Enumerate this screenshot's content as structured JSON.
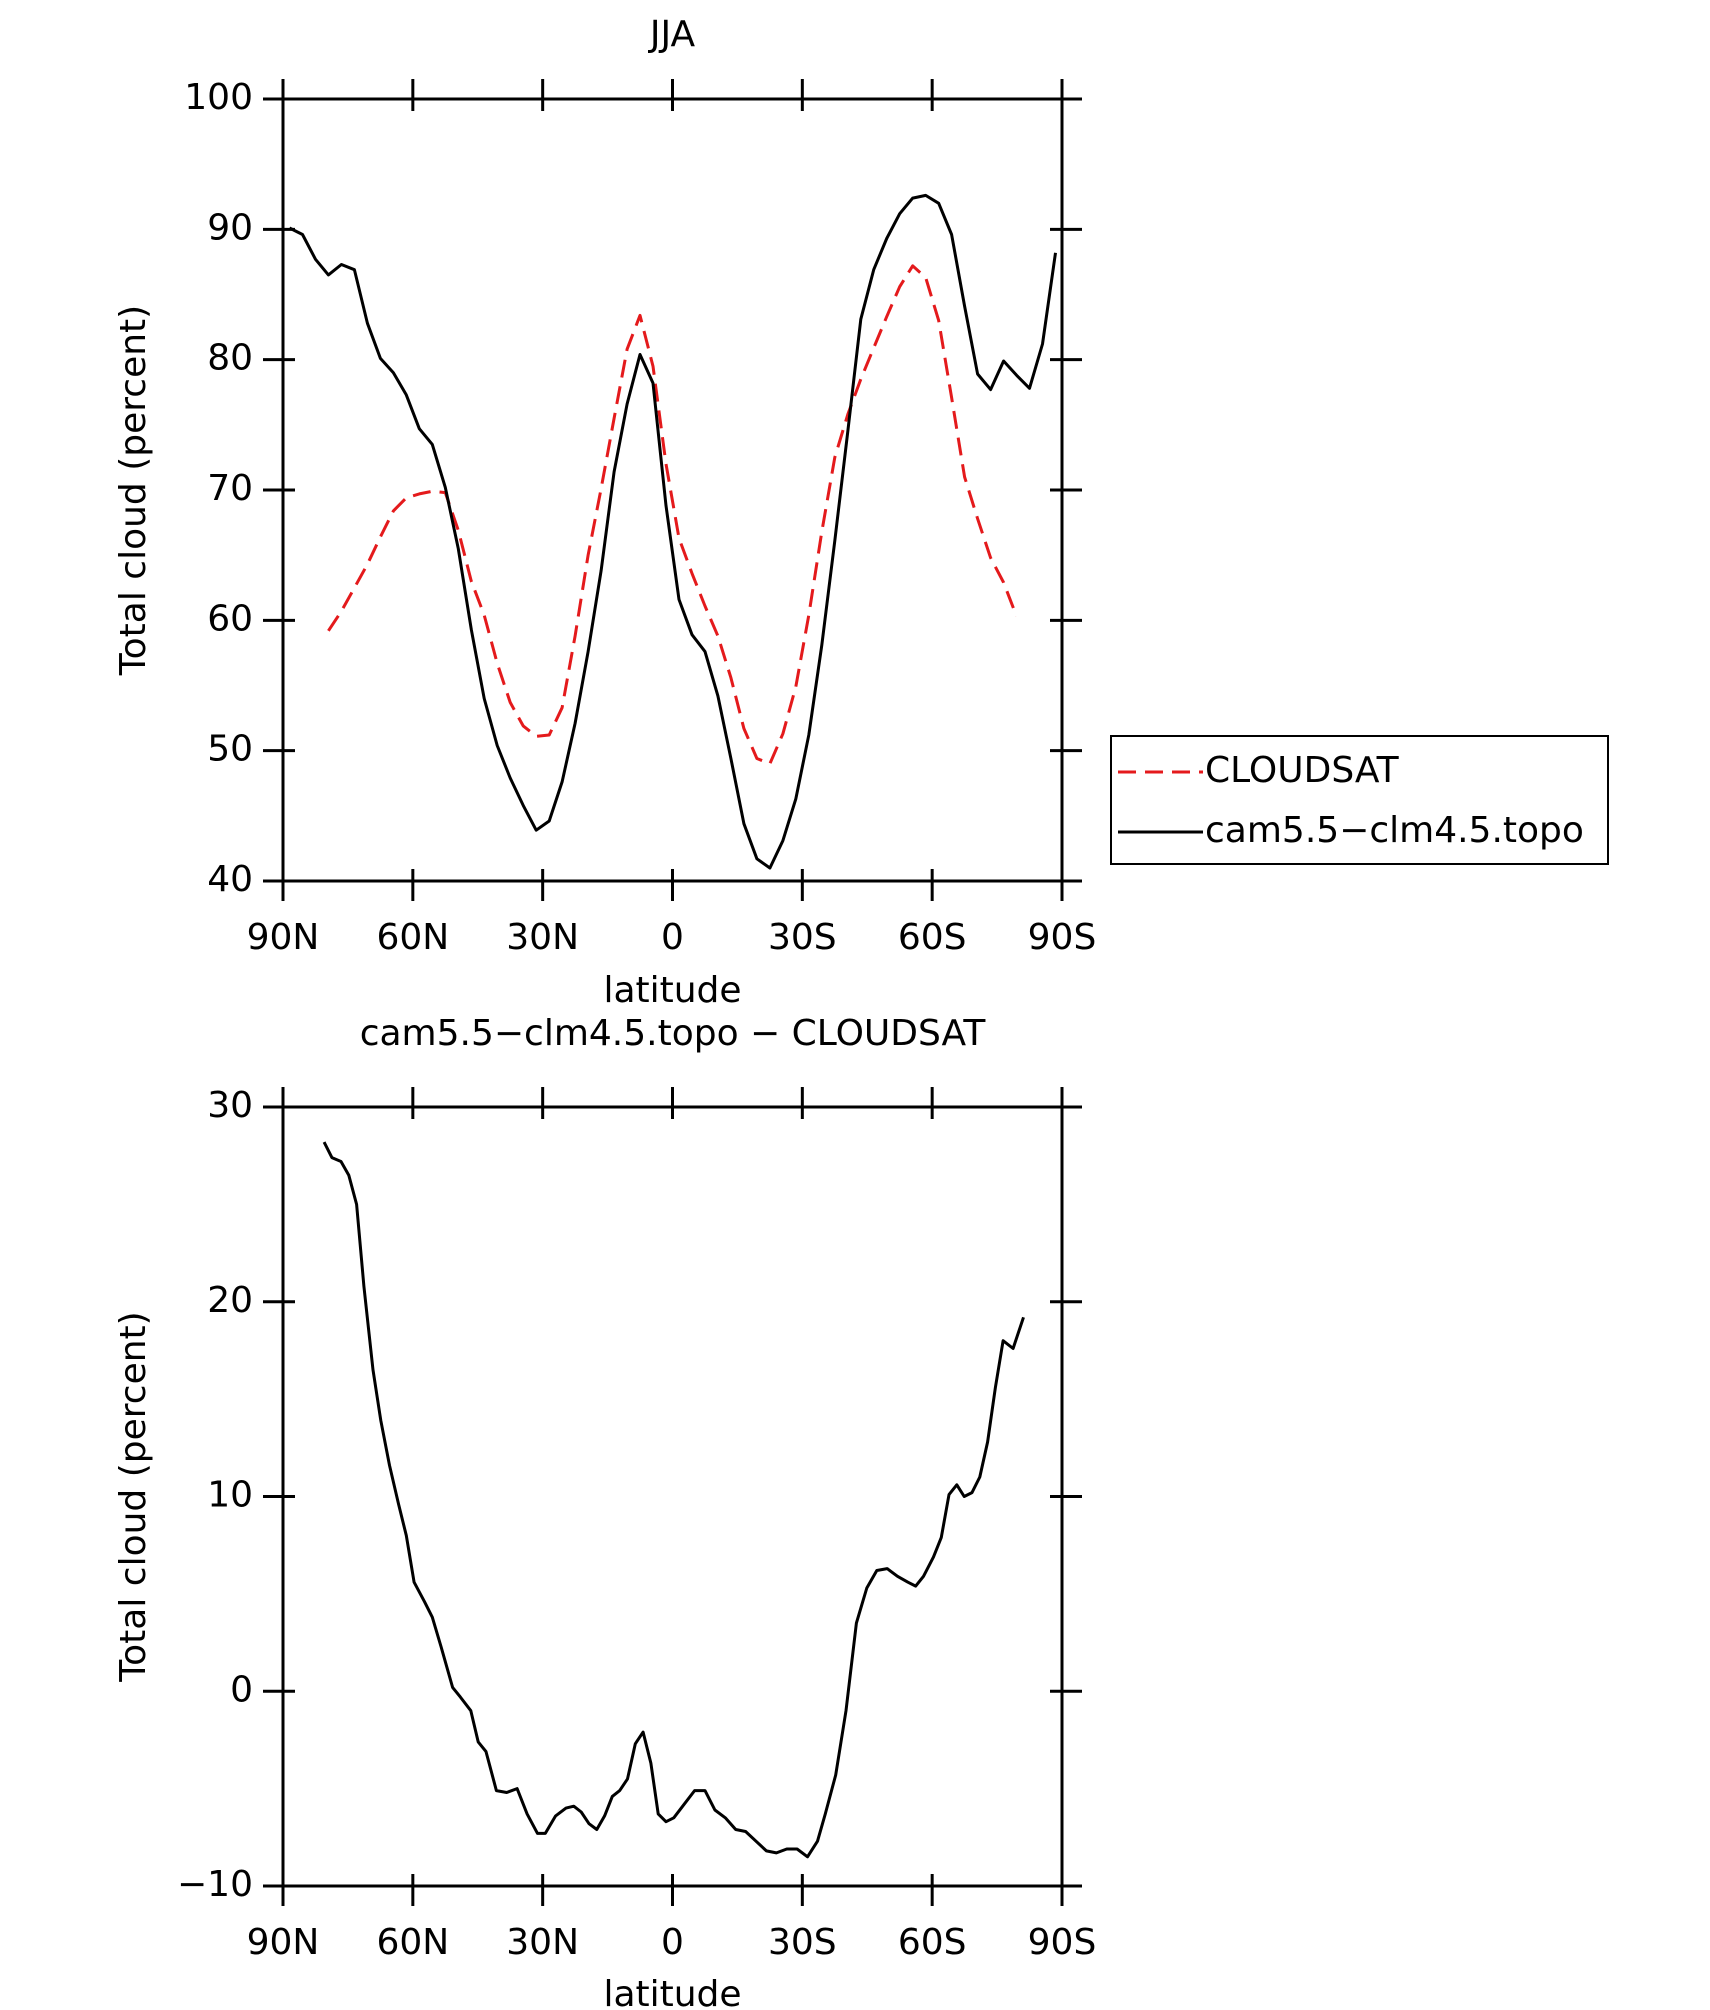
{
  "chart_data": [
    {
      "type": "line",
      "title": "JJA",
      "x_label": "latitude",
      "y_label": "Total cloud (percent)",
      "x": [
        88.5,
        85.5,
        82.5,
        79.5,
        76.5,
        73.5,
        70.5,
        67.5,
        64.5,
        61.5,
        58.5,
        55.5,
        52.5,
        49.5,
        46.5,
        43.5,
        40.5,
        37.5,
        34.5,
        31.5,
        28.5,
        25.5,
        22.5,
        19.5,
        16.5,
        13.5,
        10.5,
        7.5,
        4.5,
        1.5,
        -1.5,
        -4.5,
        -7.5,
        -10.5,
        -13.5,
        -16.5,
        -19.5,
        -22.5,
        -25.5,
        -28.5,
        -31.5,
        -34.5,
        -37.5,
        -40.5,
        -43.5,
        -46.5,
        -49.5,
        -52.5,
        -55.5,
        -58.5,
        -61.5,
        -64.5,
        -67.5,
        -70.5,
        -73.5,
        -76.5,
        -79.5,
        -82.5,
        -85.5,
        -88.5
      ],
      "series": [
        {
          "name": "CLOUDSAT",
          "color": "#e41a1c",
          "dashed": true,
          "values": [
            null,
            null,
            null,
            59.2,
            60.7,
            62.5,
            64.3,
            66.4,
            68.4,
            69.4,
            69.7,
            69.9,
            69.8,
            66.9,
            63.0,
            60.4,
            56.7,
            53.7,
            51.9,
            51.1,
            51.2,
            53.3,
            58.8,
            65.0,
            70.1,
            75.5,
            80.8,
            83.4,
            79.5,
            72.0,
            66.3,
            63.6,
            61.1,
            58.8,
            55.6,
            51.7,
            49.4,
            49.0,
            51.3,
            54.9,
            60.4,
            66.8,
            72.5,
            75.8,
            78.5,
            80.9,
            83.3,
            85.6,
            87.2,
            86.3,
            83.0,
            77.1,
            71.0,
            67.8,
            64.8,
            62.9,
            60.3,
            null,
            null,
            null
          ]
        },
        {
          "name": "cam5.5−clm4.5.topo",
          "color": "#000000",
          "dashed": false,
          "values": [
            90.1,
            89.6,
            87.7,
            86.5,
            87.3,
            86.9,
            82.8,
            80.1,
            79.0,
            77.3,
            74.7,
            73.5,
            70.2,
            65.5,
            59.3,
            54.0,
            50.4,
            47.9,
            45.8,
            43.9,
            44.6,
            47.6,
            52.1,
            57.6,
            63.8,
            71.4,
            76.6,
            80.4,
            78.2,
            68.8,
            61.6,
            58.9,
            57.6,
            54.2,
            49.4,
            44.4,
            41.7,
            41.0,
            43.1,
            46.3,
            51.2,
            58.1,
            66.1,
            74.5,
            83.1,
            86.9,
            89.3,
            91.2,
            92.4,
            92.6,
            92.0,
            89.6,
            84.1,
            78.9,
            77.7,
            79.9,
            78.8,
            77.8,
            81.2,
            88.2
          ]
        }
      ],
      "xlim": [
        90,
        -90
      ],
      "xticks": [
        {
          "value": 90,
          "label": "90N"
        },
        {
          "value": 60,
          "label": "60N"
        },
        {
          "value": 30,
          "label": "30N"
        },
        0,
        {
          "value": -30,
          "label": "30S"
        },
        {
          "value": -60,
          "label": "60S"
        },
        {
          "value": -90,
          "label": "90S"
        }
      ],
      "ylim": [
        40,
        100
      ],
      "yticks": [
        40,
        50,
        60,
        70,
        80,
        90,
        100
      ],
      "legend": "right"
    },
    {
      "type": "line",
      "title": "cam5.5−clm4.5.topo − CLOUDSAT",
      "x_label": "latitude",
      "y_label": "Total cloud (percent)",
      "x": [
        80.5,
        78.7,
        76.6,
        74.8,
        73,
        71.3,
        69.2,
        67.4,
        65.4,
        63.3,
        61.5,
        59.7,
        57.3,
        55.5,
        53.5,
        50.8,
        49,
        46.6,
        44.9,
        43.1,
        40.7,
        38.3,
        35.9,
        33.6,
        31.2,
        29.4,
        27,
        24.6,
        22.8,
        21.1,
        19.3,
        17.5,
        15.7,
        13.9,
        12.2,
        10.4,
        8.6,
        6.8,
        5,
        3.3,
        1.5,
        -0.3,
        -2.7,
        -5.1,
        -7.5,
        -9.8,
        -12.2,
        -14.6,
        -16.9,
        -19.3,
        -21.7,
        -24,
        -26.4,
        -28.8,
        -31.2,
        -33.5,
        -35.3,
        -37.7,
        -40.1,
        -42.5,
        -44.9,
        -47.2,
        -49.6,
        -52,
        -54.4,
        -56.2,
        -58,
        -60.3,
        -62.1,
        -63.9,
        -65.7,
        -67.4,
        -69.2,
        -71,
        -72.8,
        -74.6,
        -76.4,
        -78.7,
        -81.1
      ],
      "series": [
        {
          "color": "#000000",
          "values": [
            28.2,
            27.4,
            27.2,
            26.5,
            25.0,
            20.8,
            16.5,
            13.9,
            11.6,
            9.6,
            8.0,
            5.6,
            4.6,
            3.8,
            2.3,
            0.2,
            -0.3,
            -1.0,
            -2.6,
            -3.1,
            -5.1,
            -5.2,
            -5.0,
            -6.3,
            -7.3,
            -7.3,
            -6.4,
            -6.0,
            -5.9,
            -6.2,
            -6.8,
            -7.1,
            -6.4,
            -5.4,
            -5.1,
            -4.5,
            -2.7,
            -2.1,
            -3.7,
            -6.3,
            -6.7,
            -6.5,
            -5.8,
            -5.1,
            -5.1,
            -6.1,
            -6.5,
            -7.1,
            -7.2,
            -7.7,
            -8.2,
            -8.3,
            -8.1,
            -8.1,
            -8.5,
            -7.7,
            -6.3,
            -4.3,
            -1.0,
            3.5,
            5.3,
            6.2,
            6.3,
            5.9,
            5.6,
            5.4,
            5.9,
            6.9,
            7.9,
            10.1,
            10.6,
            10.0,
            10.2,
            11.0,
            12.8,
            15.6,
            18.0,
            17.6,
            19.2
          ]
        }
      ],
      "xlim": [
        90,
        -90
      ],
      "xticks": [
        {
          "value": 90,
          "label": "90N"
        },
        {
          "value": 60,
          "label": "60N"
        },
        {
          "value": 30,
          "label": "30N"
        },
        0,
        {
          "value": -30,
          "label": "30S"
        },
        {
          "value": -60,
          "label": "60S"
        },
        {
          "value": -90,
          "label": "90S"
        }
      ],
      "ylim": [
        -10,
        30
      ],
      "yticks": [
        {
          "value": -10,
          "label": "−10"
        },
        0,
        10,
        20,
        30
      ]
    }
  ]
}
